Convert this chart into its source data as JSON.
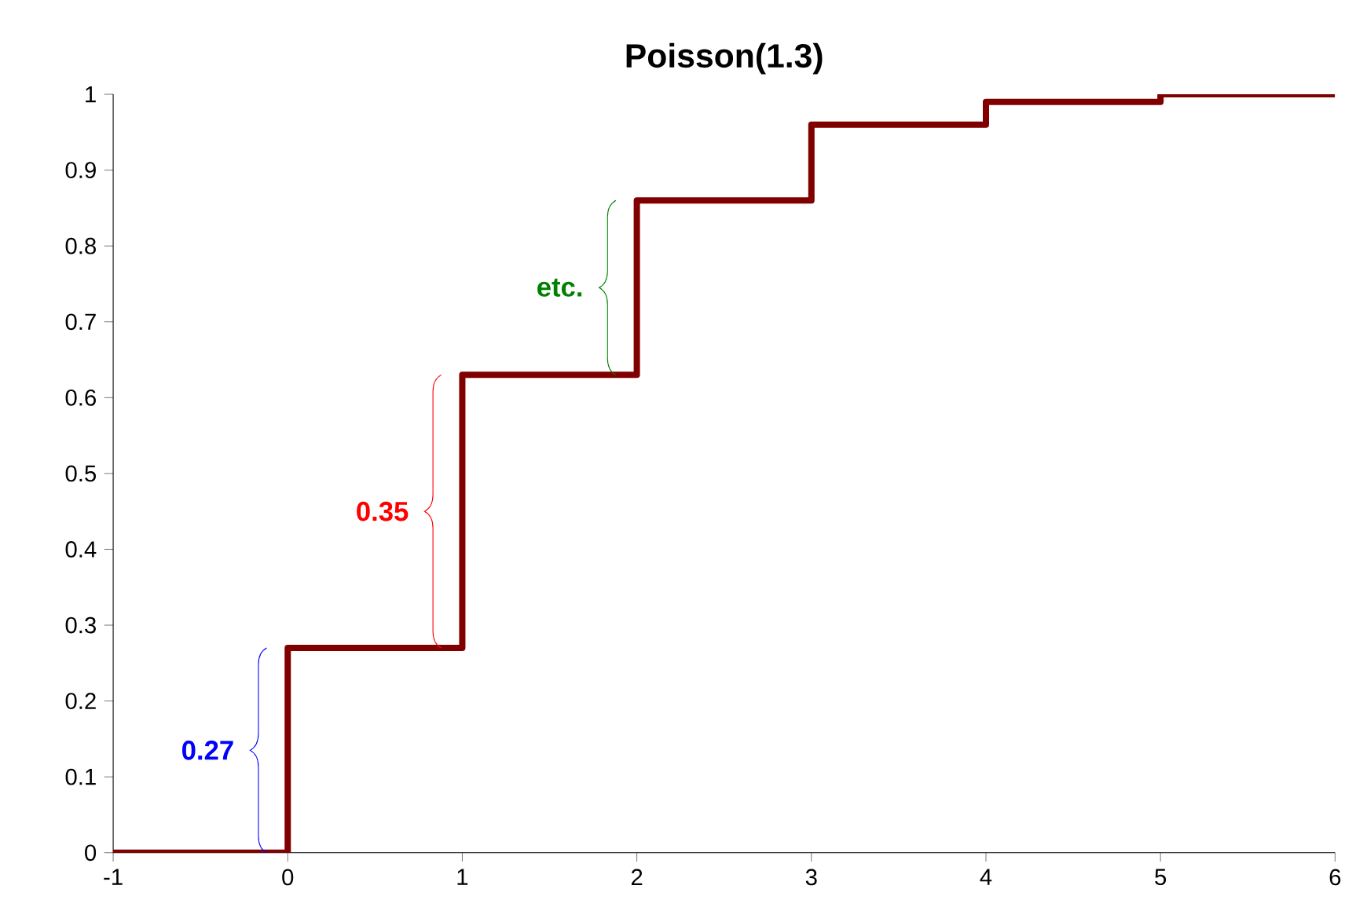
{
  "chart_data": {
    "type": "step",
    "title": "Poisson(1.3)",
    "x": [
      -1,
      0,
      1,
      2,
      3,
      4,
      5,
      6
    ],
    "series": [
      {
        "color": "#800000",
        "values": [
          0,
          0.27,
          0.63,
          0.86,
          0.96,
          0.99,
          1.0,
          1.0
        ]
      }
    ],
    "xlim": [
      -1,
      6
    ],
    "xticks": [
      -1,
      0,
      1,
      2,
      3,
      4,
      5,
      6
    ],
    "ylim": [
      0,
      1
    ],
    "yticks": [
      0,
      0.1,
      0.2,
      0.3,
      0.4,
      0.5,
      0.6,
      0.7,
      0.8,
      0.9,
      1
    ],
    "grid": false,
    "annotations": [
      "0.27",
      "0.35",
      "etc."
    ]
  }
}
